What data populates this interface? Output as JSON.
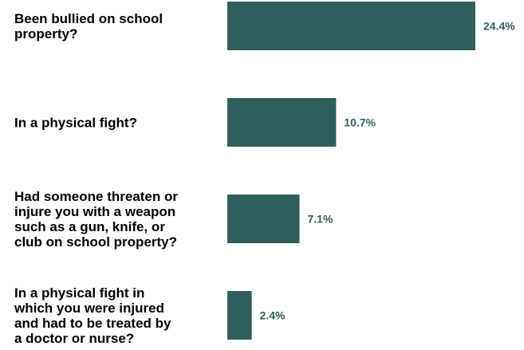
{
  "chart_data": {
    "type": "bar",
    "orientation": "horizontal",
    "categories": [
      [
        "Been bullied on school",
        "property?"
      ],
      [
        "In a physical fight?"
      ],
      [
        "Had someone threaten or",
        "injure you with a weapon",
        "such as a gun, knife, or",
        "club on school property?"
      ],
      [
        "In a physical fight in",
        "which you were injured",
        "and had to be treated by",
        "a doctor or nurse?"
      ]
    ],
    "values": [
      24.4,
      10.7,
      7.1,
      2.4
    ],
    "value_labels": [
      "24.4%",
      "10.7%",
      "7.1%",
      "2.4%"
    ],
    "bar_color": "#2f5f5d",
    "value_label_color": "#2f5f5d",
    "xlim": [
      0,
      24.4
    ],
    "grid": false,
    "legend": "none"
  }
}
